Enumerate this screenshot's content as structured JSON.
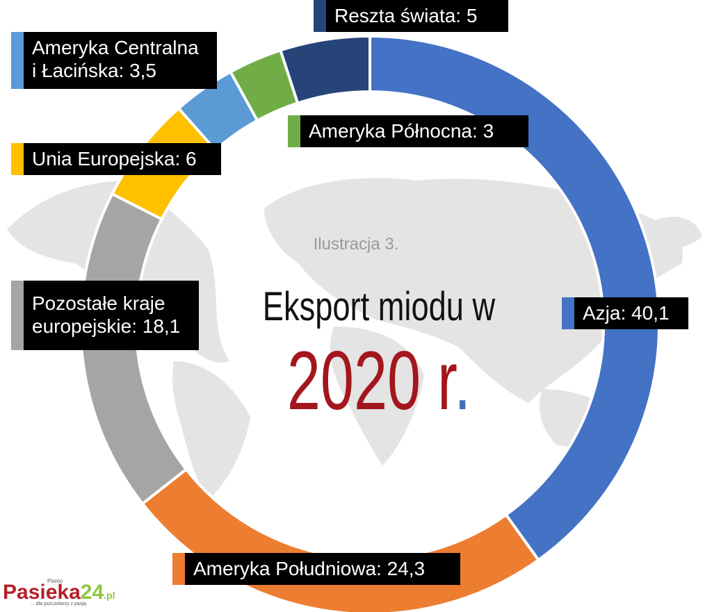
{
  "chart_data": {
    "type": "pie",
    "subtitle": "Ilustracja 3.",
    "title": "Eksport miodu w",
    "title_year": "2020 r",
    "title_year_dot": ".",
    "slices": [
      {
        "label": "Azja: 40,1",
        "value": 40.1,
        "color": "#4472C4"
      },
      {
        "label": "Ameryka Południowa: 24,3",
        "value": 24.3,
        "color": "#ED7D31"
      },
      {
        "label": "Pozostałe kraje europejskie: 18,1",
        "value": 18.1,
        "color": "#A5A5A5"
      },
      {
        "label": "Unia Europejska: 6",
        "value": 6,
        "color": "#FFC000"
      },
      {
        "label": "Ameryka Centralna i Łacińska: 3,5",
        "value": 3.5,
        "color": "#5B9BD5"
      },
      {
        "label": "Ameryka Północna: 3",
        "value": 3,
        "color": "#70AD47"
      },
      {
        "label": "Reszta świata: 5",
        "value": 5,
        "color": "#264478"
      }
    ],
    "callouts": {
      "reszta": {
        "line1": "Reszta świata: 5"
      },
      "amc": {
        "line1": "Ameryka Centralna",
        "line2": "i Łacińska: 3,5"
      },
      "amn": {
        "line1": "Ameryka Północna: 3"
      },
      "ue": {
        "line1": "Unia Europejska: 6"
      },
      "pozostale": {
        "line1": "Pozostałe kraje",
        "line2": "europejskie: 18,1"
      },
      "azja": {
        "line1": "Azja: 40,1"
      },
      "ams": {
        "line1": "Ameryka Południowa: 24,3"
      }
    }
  },
  "logo": {
    "pismo": "Pismo",
    "brand": "Pasieka",
    "number": "24",
    "domain": ".pl",
    "tagline": "... dla pszczelarzy z pasją"
  }
}
